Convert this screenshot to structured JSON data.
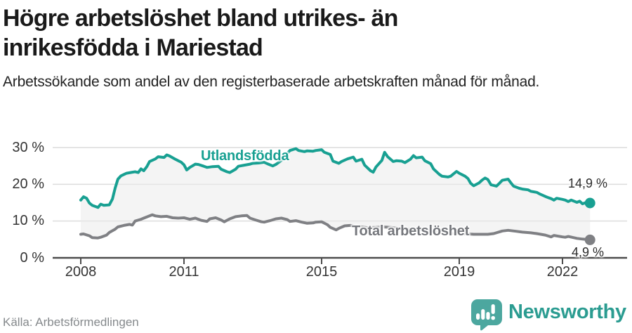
{
  "header": {
    "title_lines": [
      "Högre arbetslöshet bland utrikes- än",
      "inrikesfödda i Mariestad"
    ],
    "subtitle": "Arbetssökande som andel av den registerbaserade arbetskraften månad för månad."
  },
  "chart_data": {
    "type": "line",
    "title": "Högre arbetslöshet bland utrikes- än inrikesfödda i Mariestad",
    "subtitle": "Arbetssökande som andel av den registerbaserade arbetskraften månad för månad.",
    "unit": "%",
    "xlim": [
      2008,
      2022.9
    ],
    "ylim": [
      0,
      30
    ],
    "grid": true,
    "legend_position": "inline-labels",
    "x_ticks": [
      "2008",
      "2011",
      "2015",
      "2019",
      "2022"
    ],
    "x_tick_years": [
      2008,
      2011,
      2015,
      2019,
      2022
    ],
    "y_ticks": [
      "30 %",
      "20 %",
      "10 %",
      "0 %"
    ],
    "y_grid_values": [
      10,
      20,
      30
    ],
    "area_between_series": true,
    "colors": {
      "utlandsfodda": "#18a092",
      "total": "#7f8084",
      "area": "#ebebeb",
      "grid": "#dcdcdc",
      "axis": "#4d4d4d"
    },
    "series": [
      {
        "name": "Utlandsfödda",
        "color": "#18a092",
        "end_label": "14,9 %",
        "end_value": 14.9,
        "points": [
          [
            2008.0,
            15.7
          ],
          [
            2008.08,
            16.6
          ],
          [
            2008.17,
            16.2
          ],
          [
            2008.25,
            14.9
          ],
          [
            2008.33,
            14.3
          ],
          [
            2008.5,
            13.7
          ],
          [
            2008.58,
            14.6
          ],
          [
            2008.67,
            14.3
          ],
          [
            2008.83,
            14.4
          ],
          [
            2008.92,
            16.0
          ],
          [
            2009.0,
            19.0
          ],
          [
            2009.08,
            21.4
          ],
          [
            2009.17,
            22.3
          ],
          [
            2009.33,
            23.0
          ],
          [
            2009.5,
            23.3
          ],
          [
            2009.58,
            23.4
          ],
          [
            2009.67,
            23.2
          ],
          [
            2009.75,
            24.2
          ],
          [
            2009.83,
            23.7
          ],
          [
            2009.92,
            24.8
          ],
          [
            2010.0,
            26.2
          ],
          [
            2010.17,
            26.9
          ],
          [
            2010.25,
            27.5
          ],
          [
            2010.42,
            27.3
          ],
          [
            2010.5,
            28.0
          ],
          [
            2010.58,
            27.7
          ],
          [
            2010.75,
            26.8
          ],
          [
            2010.92,
            26.0
          ],
          [
            2011.0,
            25.3
          ],
          [
            2011.08,
            23.9
          ],
          [
            2011.17,
            24.6
          ],
          [
            2011.33,
            25.5
          ],
          [
            2011.42,
            25.4
          ],
          [
            2011.58,
            24.9
          ],
          [
            2011.67,
            24.6
          ],
          [
            2011.83,
            24.8
          ],
          [
            2012.0,
            24.9
          ],
          [
            2012.08,
            24.1
          ],
          [
            2012.25,
            23.4
          ],
          [
            2012.33,
            23.2
          ],
          [
            2012.5,
            24.1
          ],
          [
            2012.58,
            24.9
          ],
          [
            2012.75,
            25.2
          ],
          [
            2012.92,
            25.5
          ],
          [
            2013.0,
            25.7
          ],
          [
            2013.17,
            25.8
          ],
          [
            2013.33,
            26.0
          ],
          [
            2013.42,
            25.6
          ],
          [
            2013.58,
            25.0
          ],
          [
            2013.67,
            25.4
          ],
          [
            2013.83,
            26.5
          ],
          [
            2013.92,
            27.6
          ],
          [
            2014.08,
            29.2
          ],
          [
            2014.25,
            29.7
          ],
          [
            2014.33,
            29.2
          ],
          [
            2014.5,
            28.9
          ],
          [
            2014.58,
            29.1
          ],
          [
            2014.75,
            29.0
          ],
          [
            2014.83,
            29.2
          ],
          [
            2015.0,
            29.4
          ],
          [
            2015.08,
            28.7
          ],
          [
            2015.25,
            28.1
          ],
          [
            2015.33,
            26.3
          ],
          [
            2015.5,
            25.7
          ],
          [
            2015.58,
            26.2
          ],
          [
            2015.75,
            26.9
          ],
          [
            2015.92,
            27.4
          ],
          [
            2016.0,
            26.3
          ],
          [
            2016.17,
            26.8
          ],
          [
            2016.25,
            25.2
          ],
          [
            2016.42,
            23.7
          ],
          [
            2016.5,
            23.3
          ],
          [
            2016.58,
            24.7
          ],
          [
            2016.75,
            26.5
          ],
          [
            2016.83,
            28.7
          ],
          [
            2016.92,
            27.5
          ],
          [
            2017.08,
            26.2
          ],
          [
            2017.17,
            26.4
          ],
          [
            2017.33,
            26.3
          ],
          [
            2017.42,
            25.9
          ],
          [
            2017.58,
            26.8
          ],
          [
            2017.67,
            27.8
          ],
          [
            2017.75,
            27.2
          ],
          [
            2017.92,
            27.4
          ],
          [
            2018.0,
            26.4
          ],
          [
            2018.17,
            25.6
          ],
          [
            2018.25,
            24.2
          ],
          [
            2018.42,
            22.7
          ],
          [
            2018.5,
            22.2
          ],
          [
            2018.67,
            22.0
          ],
          [
            2018.75,
            22.2
          ],
          [
            2018.92,
            23.5
          ],
          [
            2019.0,
            23.0
          ],
          [
            2019.17,
            22.2
          ],
          [
            2019.25,
            21.6
          ],
          [
            2019.33,
            20.3
          ],
          [
            2019.42,
            19.6
          ],
          [
            2019.58,
            20.4
          ],
          [
            2019.67,
            21.2
          ],
          [
            2019.75,
            21.7
          ],
          [
            2019.83,
            21.3
          ],
          [
            2019.92,
            19.9
          ],
          [
            2020.08,
            19.5
          ],
          [
            2020.17,
            20.3
          ],
          [
            2020.25,
            21.1
          ],
          [
            2020.42,
            21.4
          ],
          [
            2020.5,
            20.4
          ],
          [
            2020.58,
            19.5
          ],
          [
            2020.75,
            18.9
          ],
          [
            2020.83,
            18.7
          ],
          [
            2021.0,
            18.5
          ],
          [
            2021.08,
            18.1
          ],
          [
            2021.25,
            17.8
          ],
          [
            2021.33,
            17.4
          ],
          [
            2021.5,
            16.7
          ],
          [
            2021.58,
            16.4
          ],
          [
            2021.67,
            16.1
          ],
          [
            2021.75,
            15.7
          ],
          [
            2021.83,
            16.2
          ],
          [
            2022.0,
            15.9
          ],
          [
            2022.08,
            15.7
          ],
          [
            2022.17,
            15.3
          ],
          [
            2022.25,
            15.7
          ],
          [
            2022.42,
            15.1
          ],
          [
            2022.5,
            15.4
          ],
          [
            2022.58,
            14.7
          ],
          [
            2022.67,
            15.0
          ],
          [
            2022.8,
            14.9
          ]
        ]
      },
      {
        "name": "Total arbetslöshet",
        "color": "#7f8084",
        "end_label": "4,9 %",
        "end_value": 4.9,
        "points": [
          [
            2008.0,
            6.4
          ],
          [
            2008.08,
            6.5
          ],
          [
            2008.25,
            6.0
          ],
          [
            2008.33,
            5.5
          ],
          [
            2008.5,
            5.4
          ],
          [
            2008.58,
            5.6
          ],
          [
            2008.75,
            6.2
          ],
          [
            2008.83,
            6.9
          ],
          [
            2009.0,
            7.8
          ],
          [
            2009.08,
            8.4
          ],
          [
            2009.25,
            8.8
          ],
          [
            2009.42,
            9.1
          ],
          [
            2009.5,
            8.9
          ],
          [
            2009.58,
            10.0
          ],
          [
            2009.75,
            10.5
          ],
          [
            2009.83,
            10.8
          ],
          [
            2010.0,
            11.4
          ],
          [
            2010.08,
            11.7
          ],
          [
            2010.17,
            11.4
          ],
          [
            2010.33,
            11.2
          ],
          [
            2010.5,
            11.3
          ],
          [
            2010.67,
            10.9
          ],
          [
            2010.83,
            10.8
          ],
          [
            2011.0,
            10.9
          ],
          [
            2011.17,
            10.5
          ],
          [
            2011.33,
            10.8
          ],
          [
            2011.5,
            10.2
          ],
          [
            2011.67,
            9.9
          ],
          [
            2011.75,
            10.6
          ],
          [
            2011.92,
            10.9
          ],
          [
            2012.08,
            10.3
          ],
          [
            2012.17,
            9.8
          ],
          [
            2012.33,
            10.6
          ],
          [
            2012.5,
            11.2
          ],
          [
            2012.67,
            11.4
          ],
          [
            2012.83,
            11.5
          ],
          [
            2012.92,
            10.8
          ],
          [
            2013.08,
            10.3
          ],
          [
            2013.25,
            9.8
          ],
          [
            2013.33,
            9.7
          ],
          [
            2013.5,
            10.1
          ],
          [
            2013.67,
            10.6
          ],
          [
            2013.83,
            10.8
          ],
          [
            2014.0,
            10.4
          ],
          [
            2014.08,
            9.9
          ],
          [
            2014.25,
            10.1
          ],
          [
            2014.42,
            9.7
          ],
          [
            2014.58,
            9.4
          ],
          [
            2014.75,
            9.5
          ],
          [
            2014.83,
            9.7
          ],
          [
            2015.0,
            9.8
          ],
          [
            2015.17,
            9.0
          ],
          [
            2015.25,
            8.3
          ],
          [
            2015.42,
            7.6
          ],
          [
            2015.5,
            8.0
          ],
          [
            2015.67,
            8.7
          ],
          [
            2015.83,
            8.8
          ],
          [
            2016.0,
            8.6
          ],
          [
            2016.17,
            8.4
          ],
          [
            2016.33,
            8.2
          ],
          [
            2016.58,
            8.3
          ],
          [
            2016.75,
            8.4
          ],
          [
            2017.0,
            8.3
          ],
          [
            2017.17,
            8.1
          ],
          [
            2017.42,
            7.9
          ],
          [
            2017.58,
            7.8
          ],
          [
            2017.83,
            7.7
          ],
          [
            2018.0,
            7.5
          ],
          [
            2018.17,
            7.2
          ],
          [
            2018.42,
            7.0
          ],
          [
            2018.58,
            6.8
          ],
          [
            2018.83,
            6.7
          ],
          [
            2019.0,
            6.6
          ],
          [
            2019.25,
            6.5
          ],
          [
            2019.42,
            6.4
          ],
          [
            2019.67,
            6.4
          ],
          [
            2019.83,
            6.4
          ],
          [
            2020.0,
            6.6
          ],
          [
            2020.25,
            7.3
          ],
          [
            2020.42,
            7.5
          ],
          [
            2020.67,
            7.2
          ],
          [
            2020.83,
            7.0
          ],
          [
            2021.08,
            6.8
          ],
          [
            2021.25,
            6.6
          ],
          [
            2021.5,
            6.2
          ],
          [
            2021.67,
            5.7
          ],
          [
            2021.75,
            6.1
          ],
          [
            2022.0,
            5.7
          ],
          [
            2022.08,
            5.6
          ],
          [
            2022.17,
            5.8
          ],
          [
            2022.42,
            5.3
          ],
          [
            2022.58,
            5.1
          ],
          [
            2022.8,
            4.9
          ]
        ]
      }
    ]
  },
  "footer": {
    "source": "Källa: Arbetsförmedlingen",
    "brand": "Newsworthy"
  }
}
